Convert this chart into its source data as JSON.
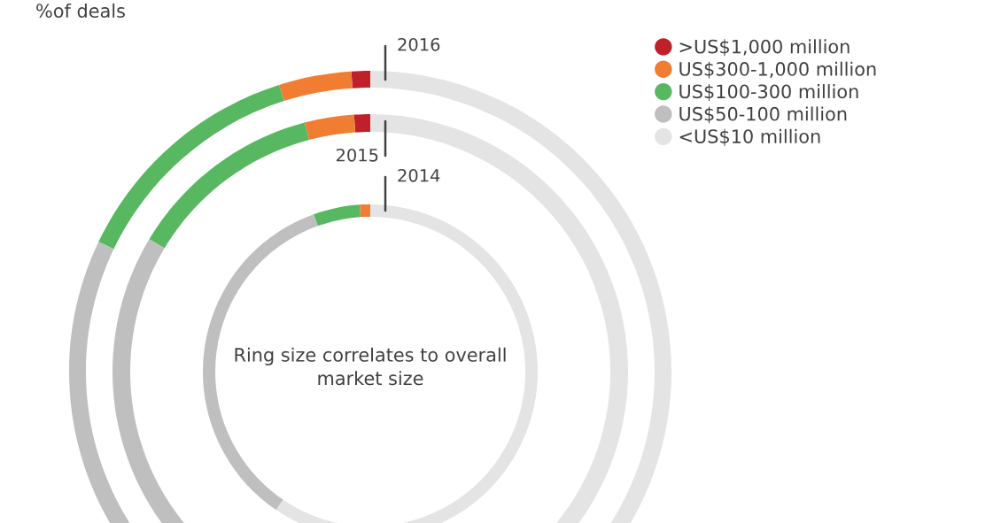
{
  "chart_data": {
    "type": "donut",
    "title": "%of deals",
    "categories": [
      ">US$1,000 million",
      "US$300-1,000 million",
      "US$100-300 million",
      "US$50-100 million",
      "<US$10 million"
    ],
    "colors": [
      "#c0202a",
      "#f07d32",
      "#58b862",
      "#bfbfbf",
      "#e4e4e4"
    ],
    "series": [
      {
        "name": "2014",
        "values": [
          0,
          1.0,
          4.5,
          35.0,
          59.5
        ]
      },
      {
        "name": "2015",
        "values": [
          1.0,
          3.1,
          12.3,
          25.6,
          58.0
        ]
      },
      {
        "name": "2016",
        "values": [
          1.0,
          3.9,
          13.0,
          24.0,
          58.1
        ]
      }
    ],
    "annotations": [
      "Ring size correlates to overall market size"
    ],
    "legend": "top right"
  }
}
